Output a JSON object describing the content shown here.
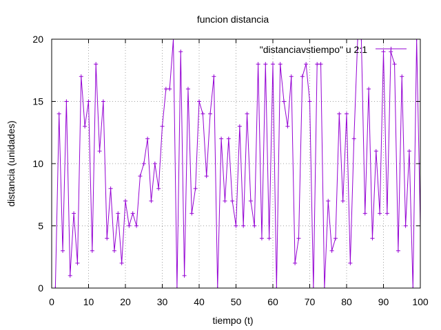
{
  "chart_data": {
    "type": "line",
    "title": "funcion distancia",
    "xlabel": "tiempo (t)",
    "ylabel": "distancia (unidades)",
    "xlim": [
      0,
      100
    ],
    "ylim": [
      0,
      20
    ],
    "xticks": [
      0,
      10,
      20,
      30,
      40,
      50,
      60,
      70,
      80,
      90,
      100
    ],
    "yticks": [
      0,
      5,
      10,
      15,
      20
    ],
    "grid": true,
    "legend_position": "top-right",
    "series_color": "#9400d3",
    "marker": "plus",
    "series": [
      {
        "name": "\"distanciavstiempo\" u 2:1",
        "x": [
          1,
          2,
          3,
          4,
          5,
          6,
          7,
          8,
          9,
          10,
          11,
          12,
          13,
          14,
          15,
          16,
          17,
          18,
          19,
          20,
          21,
          22,
          23,
          24,
          25,
          26,
          27,
          28,
          29,
          30,
          31,
          32,
          33,
          34,
          35,
          36,
          37,
          38,
          39,
          40,
          41,
          42,
          43,
          44,
          45,
          46,
          47,
          48,
          49,
          50,
          51,
          52,
          53,
          54,
          55,
          56,
          57,
          58,
          59,
          60,
          61,
          62,
          63,
          64,
          65,
          66,
          67,
          68,
          69,
          70,
          71,
          72,
          73,
          74,
          75,
          76,
          77,
          78,
          79,
          80,
          81,
          82,
          83,
          84,
          85,
          86,
          87,
          88,
          89,
          90,
          91,
          92,
          93,
          94,
          95,
          96,
          97,
          98,
          99,
          100,
          101
        ],
        "y": [
          0,
          14,
          3,
          15,
          1,
          6,
          2,
          17,
          13,
          15,
          3,
          18,
          11,
          15,
          4,
          8,
          3,
          6,
          2,
          7,
          5,
          6,
          5,
          9,
          10,
          12,
          7,
          10,
          8,
          13,
          16,
          16,
          20,
          0,
          19,
          1,
          16,
          6,
          8,
          15,
          14,
          9,
          14,
          17,
          0,
          12,
          7,
          12,
          7,
          5,
          13,
          5,
          14,
          7,
          5,
          18,
          4,
          18,
          4,
          18,
          0,
          18,
          15,
          13,
          17,
          2,
          4,
          17,
          18,
          15,
          0,
          18,
          18,
          0,
          7,
          3,
          4,
          14,
          7,
          14,
          2,
          12,
          20,
          20,
          6,
          16,
          4,
          11,
          6,
          19,
          6,
          19,
          18,
          3,
          17,
          5,
          11,
          0,
          20,
          5,
          6
        ]
      }
    ]
  }
}
